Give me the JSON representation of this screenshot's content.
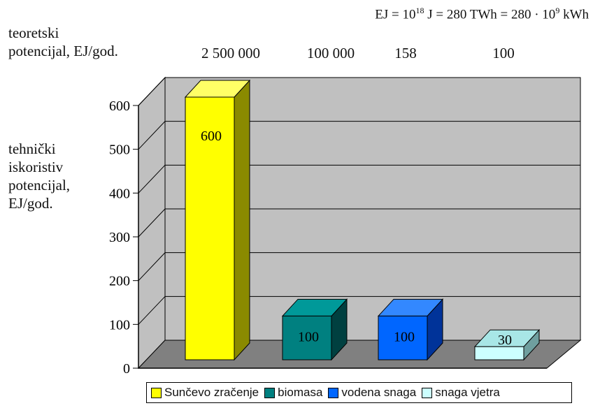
{
  "equation": {
    "pre": "EJ = 10",
    "sup1": "18",
    "mid": " J = 280 TWh = 280 · 10",
    "sup2": "9",
    "post": " kWh"
  },
  "theoretical": {
    "label_line1": "teoretski",
    "label_line2": "potencijal, EJ/god.",
    "values": [
      "2 500 000",
      "100 000",
      "158",
      "100"
    ]
  },
  "technical_label": [
    "tehnički",
    "iskoristiv",
    "potencijal,",
    "EJ/god."
  ],
  "colors": {
    "wall": "#c0c0c0",
    "floor": "#808080",
    "grid": "#000000",
    "bars": [
      {
        "front": "#ffff00",
        "top": "#ffff66",
        "side": "#8a8a00"
      },
      {
        "front": "#008080",
        "top": "#009999",
        "side": "#004040"
      },
      {
        "front": "#0066ff",
        "top": "#3388ff",
        "side": "#003399"
      },
      {
        "front": "#ccffff",
        "top": "#a8e6e6",
        "side": "#6f9f9f"
      }
    ]
  },
  "chart_data": {
    "type": "bar",
    "categories": [
      "Sunčevo zračenje",
      "biomasa",
      "vodena snaga",
      "snaga vjetra"
    ],
    "values": [
      600,
      100,
      100,
      30
    ],
    "data_labels": [
      "600",
      "100",
      "100",
      "30"
    ],
    "ylim": [
      0,
      600
    ],
    "yticks": [
      "0",
      "100",
      "200",
      "300",
      "400",
      "500",
      "600"
    ],
    "grid": true,
    "legend_position": "bottom",
    "style": "3d"
  }
}
